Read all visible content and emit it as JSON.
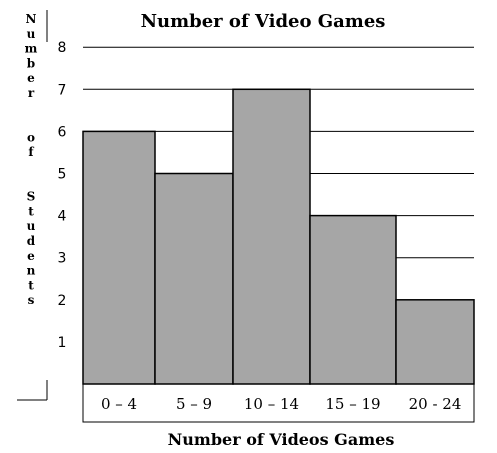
{
  "chart_data": {
    "type": "bar",
    "title": "Number of Video Games",
    "xlabel": "Number of Videos Games",
    "ylabel": "Number of Students",
    "categories": [
      "0 – 4",
      "5 – 9",
      "10 – 14",
      "15 – 19",
      "20 - 24"
    ],
    "values": [
      6,
      5,
      7,
      4,
      2
    ],
    "yticks": [
      1,
      2,
      3,
      4,
      5,
      6,
      7,
      8
    ],
    "ylim": [
      0,
      8
    ],
    "grid": true,
    "bar_color": "#a6a6a6"
  }
}
